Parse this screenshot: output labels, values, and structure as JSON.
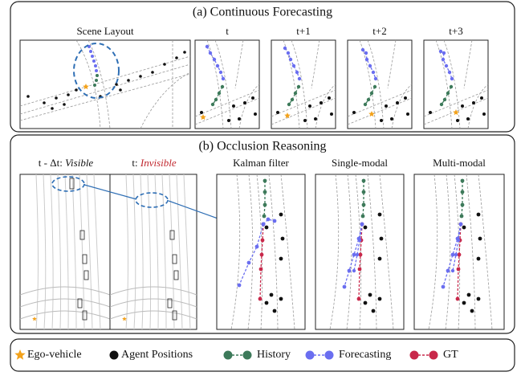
{
  "section_a": {
    "title": "(a) Continuous Forecasting",
    "panels": [
      "Scene Layout",
      "t",
      "t+1",
      "t+2",
      "t+3"
    ]
  },
  "section_b": {
    "title": "(b) Occlusion Reasoning",
    "visible_label": {
      "prefix": "t - Δt: ",
      "emph": "Visible"
    },
    "invisible_label": {
      "prefix": "t: ",
      "emph": "Invisible"
    },
    "panels": [
      "Kalman filter",
      "Single-modal",
      "Multi-modal"
    ]
  },
  "legend": [
    "Ego-vehicle",
    "Agent Positions",
    "History",
    "Forecasting",
    "GT"
  ]
}
